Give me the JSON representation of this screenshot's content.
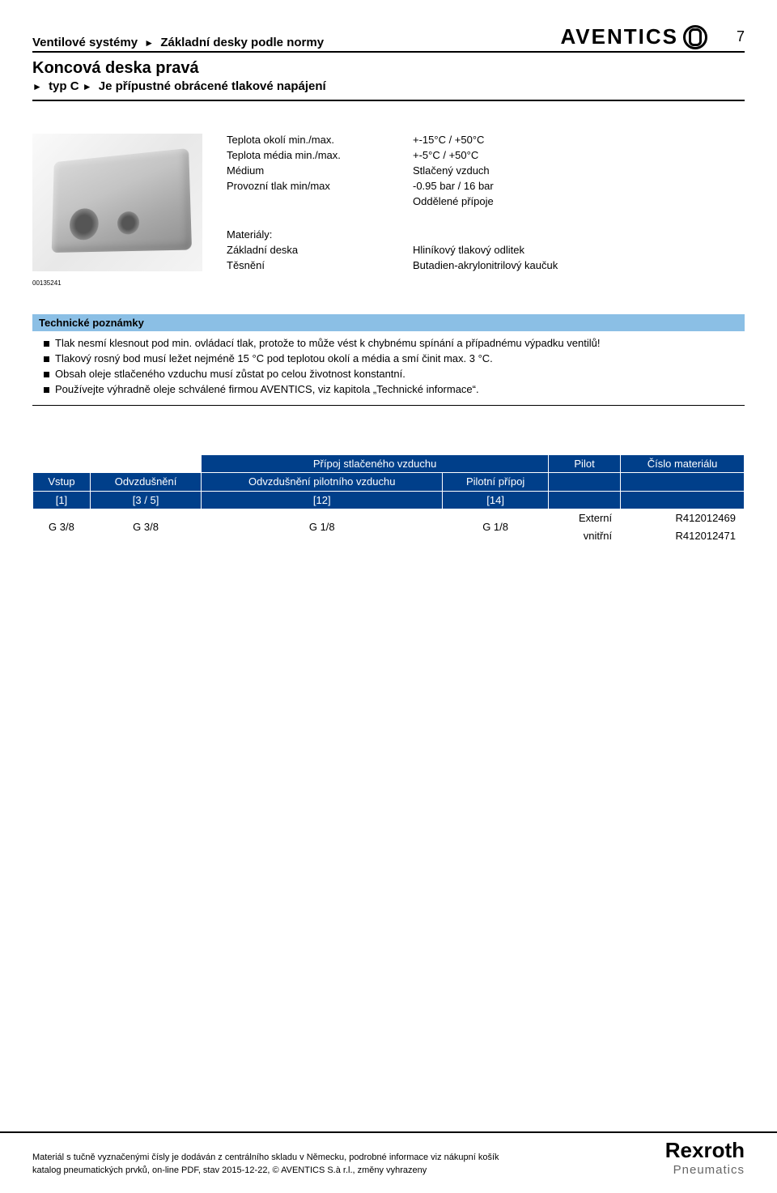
{
  "header": {
    "breadcrumb": [
      "Ventilové systémy",
      "Základní desky podle normy"
    ],
    "logo_text": "AVENTICS",
    "page_number": "7"
  },
  "title": {
    "main": "Koncová deska pravá",
    "sub": [
      "typ C",
      "Je přípustné obrácené tlakové napájení"
    ]
  },
  "image_ref": "00135241",
  "specs": {
    "rows": [
      {
        "label": "Teplota okolí min./max.",
        "value": "+-15°C / +50°C"
      },
      {
        "label": "Teplota média min./max.",
        "value": "+-5°C / +50°C"
      },
      {
        "label": "Médium",
        "value": "Stlačený vzduch"
      },
      {
        "label": "Provozní tlak min/max",
        "value": "-0.95 bar / 16 bar"
      },
      {
        "label": "",
        "value": "Oddělené přípoje"
      }
    ],
    "materials_heading": "Materiály:",
    "materials": [
      {
        "label": "Základní deska",
        "value": "Hliníkový tlakový odlitek"
      },
      {
        "label": "Těsnění",
        "value": "Butadien-akrylonitrilový kaučuk"
      }
    ]
  },
  "notes": {
    "heading": "Technické poznámky",
    "items": [
      "Tlak nesmí klesnout pod min. ovládací tlak, protože to může vést k chybnému spínání a případnému výpadku ventilů!",
      "Tlakový rosný bod musí ležet nejméně 15 °C pod teplotou okolí a média a smí činit max. 3 °C.",
      "Obsah oleje stlačeného vzduchu musí zůstat po celou životnost konstantní.",
      "Používejte výhradně oleje schválené firmou AVENTICS, viz kapitola „Technické informace“."
    ]
  },
  "table": {
    "group_header": "Přípoj stlačeného vzduchu",
    "col_pilot": "Pilot",
    "col_material": "Číslo materiálu",
    "subheaders": {
      "vstup": "Vstup",
      "odvz": "Odvzdušnění",
      "odvz_pilot": "Odvzdušnění pilotního vzduchu",
      "pilot_pripoj": "Pilotní přípoj"
    },
    "indices": {
      "c1": "[1]",
      "c2": "[3 / 5]",
      "c3": "[12]",
      "c4": "[14]"
    },
    "row": {
      "c1": "G 3/8",
      "c2": "G 3/8",
      "c3": "G 1/8",
      "c4": "G 1/8",
      "pilot1": "Externí",
      "mat1": "R412012469",
      "pilot2": "vnitřní",
      "mat2": "R412012471"
    }
  },
  "footer": {
    "line1": "Materiál s tučně vyznačenými čísly je dodáván z centrálního skladu v Německu, podrobné informace viz nákupní košík",
    "line2": "katalog pneumatických prvků, on-line PDF, stav 2015-12-22, © AVENTICS S.à r.l., změny vyhrazeny",
    "logo_main": "Rexroth",
    "logo_sub": "Pneumatics"
  },
  "colors": {
    "header_blue": "#003f8a",
    "notes_blue": "#8bbfe5",
    "text": "#000000",
    "grey": "#666666"
  }
}
